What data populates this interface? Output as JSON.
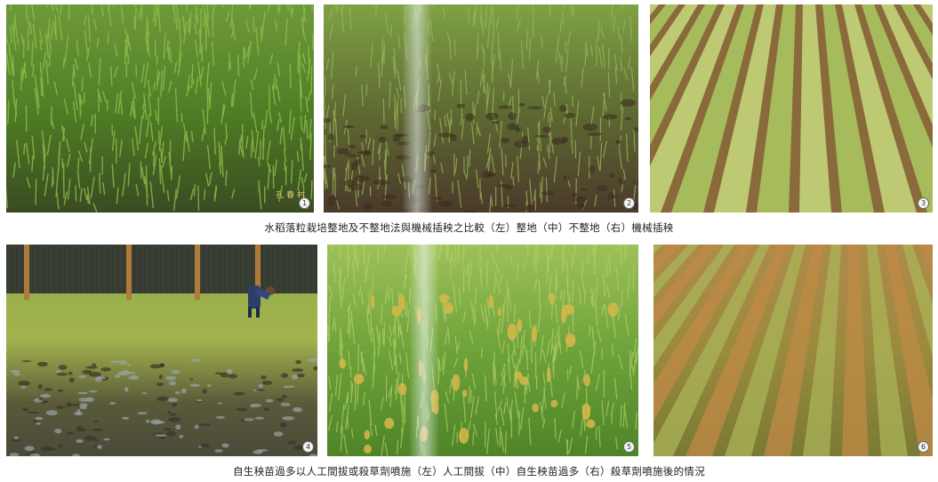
{
  "panels": [
    {
      "number": "1",
      "alt": "dense green rice seedlings in flooded paddy"
    },
    {
      "number": "2",
      "alt": "sparse rice seedlings with straw stubble"
    },
    {
      "number": "3",
      "alt": "machine-transplanted rice rows"
    },
    {
      "number": "4",
      "alt": "worker hand-pulling rice seedlings"
    },
    {
      "number": "5",
      "alt": "green rice paddy with misty streak"
    },
    {
      "number": "6",
      "alt": "rice rows yellowed after herbicide spraying"
    }
  ],
  "captions": {
    "top": "水稻落粒栽培整地及不整地法與機械插秧之比較（左）整地（中）不整地（右）機械插秧",
    "bottom": "自生秧苗過多以人工間拔或殺草劑噴施（左）人工間拔（中）自生秧苗過多（右）殺草劑噴施後的情況"
  },
  "watermark": "孔 春 村",
  "colors": {
    "green_dark": "#3f6a1e",
    "green": "#6fa032",
    "green_light": "#a9c85a",
    "soil": "#5a3f2a",
    "straw": "#c9a24f"
  }
}
